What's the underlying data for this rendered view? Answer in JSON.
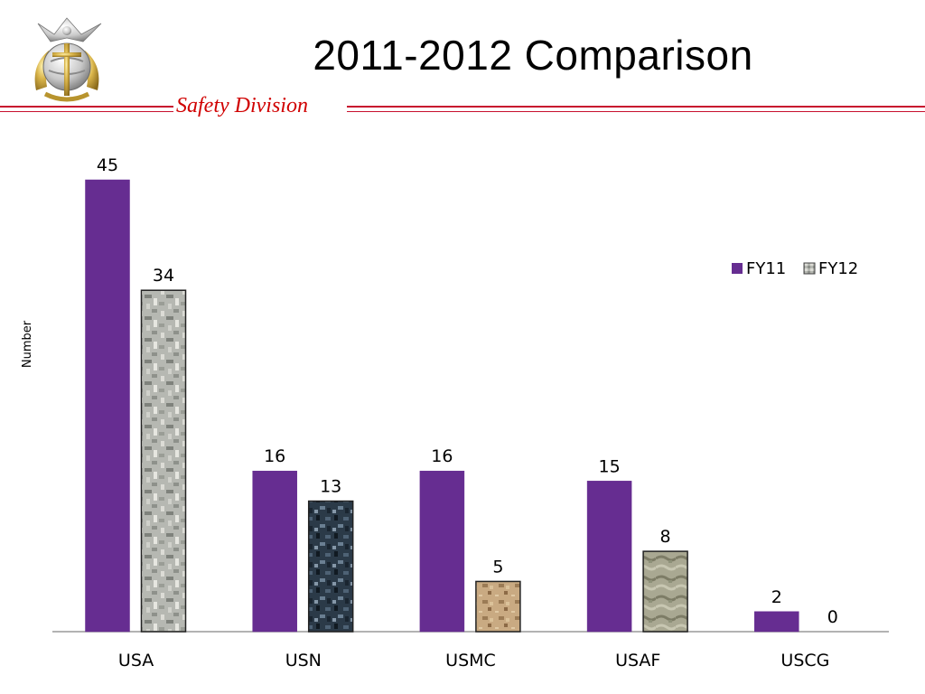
{
  "header": {
    "title": "2011-2012 Comparison",
    "division": "Safety Division",
    "emblem_icon": "eagle-globe-anchor-icon"
  },
  "colors": {
    "fy11": "#662d91",
    "fy12_camo_light": "#b6b8b2",
    "rule": "#c8102e",
    "division_text": "#d00000"
  },
  "chart_data": {
    "type": "bar",
    "title": "",
    "xlabel": "",
    "ylabel": "Number",
    "categories": [
      "USA",
      "USN",
      "USMC",
      "USAF",
      "USCG"
    ],
    "series": [
      {
        "name": "FY11",
        "values": [
          45,
          16,
          16,
          15,
          2
        ]
      },
      {
        "name": "FY12",
        "values": [
          34,
          13,
          5,
          8,
          0
        ]
      }
    ],
    "ylim": [
      0,
      45
    ],
    "grid": false,
    "legend": "top-right"
  }
}
